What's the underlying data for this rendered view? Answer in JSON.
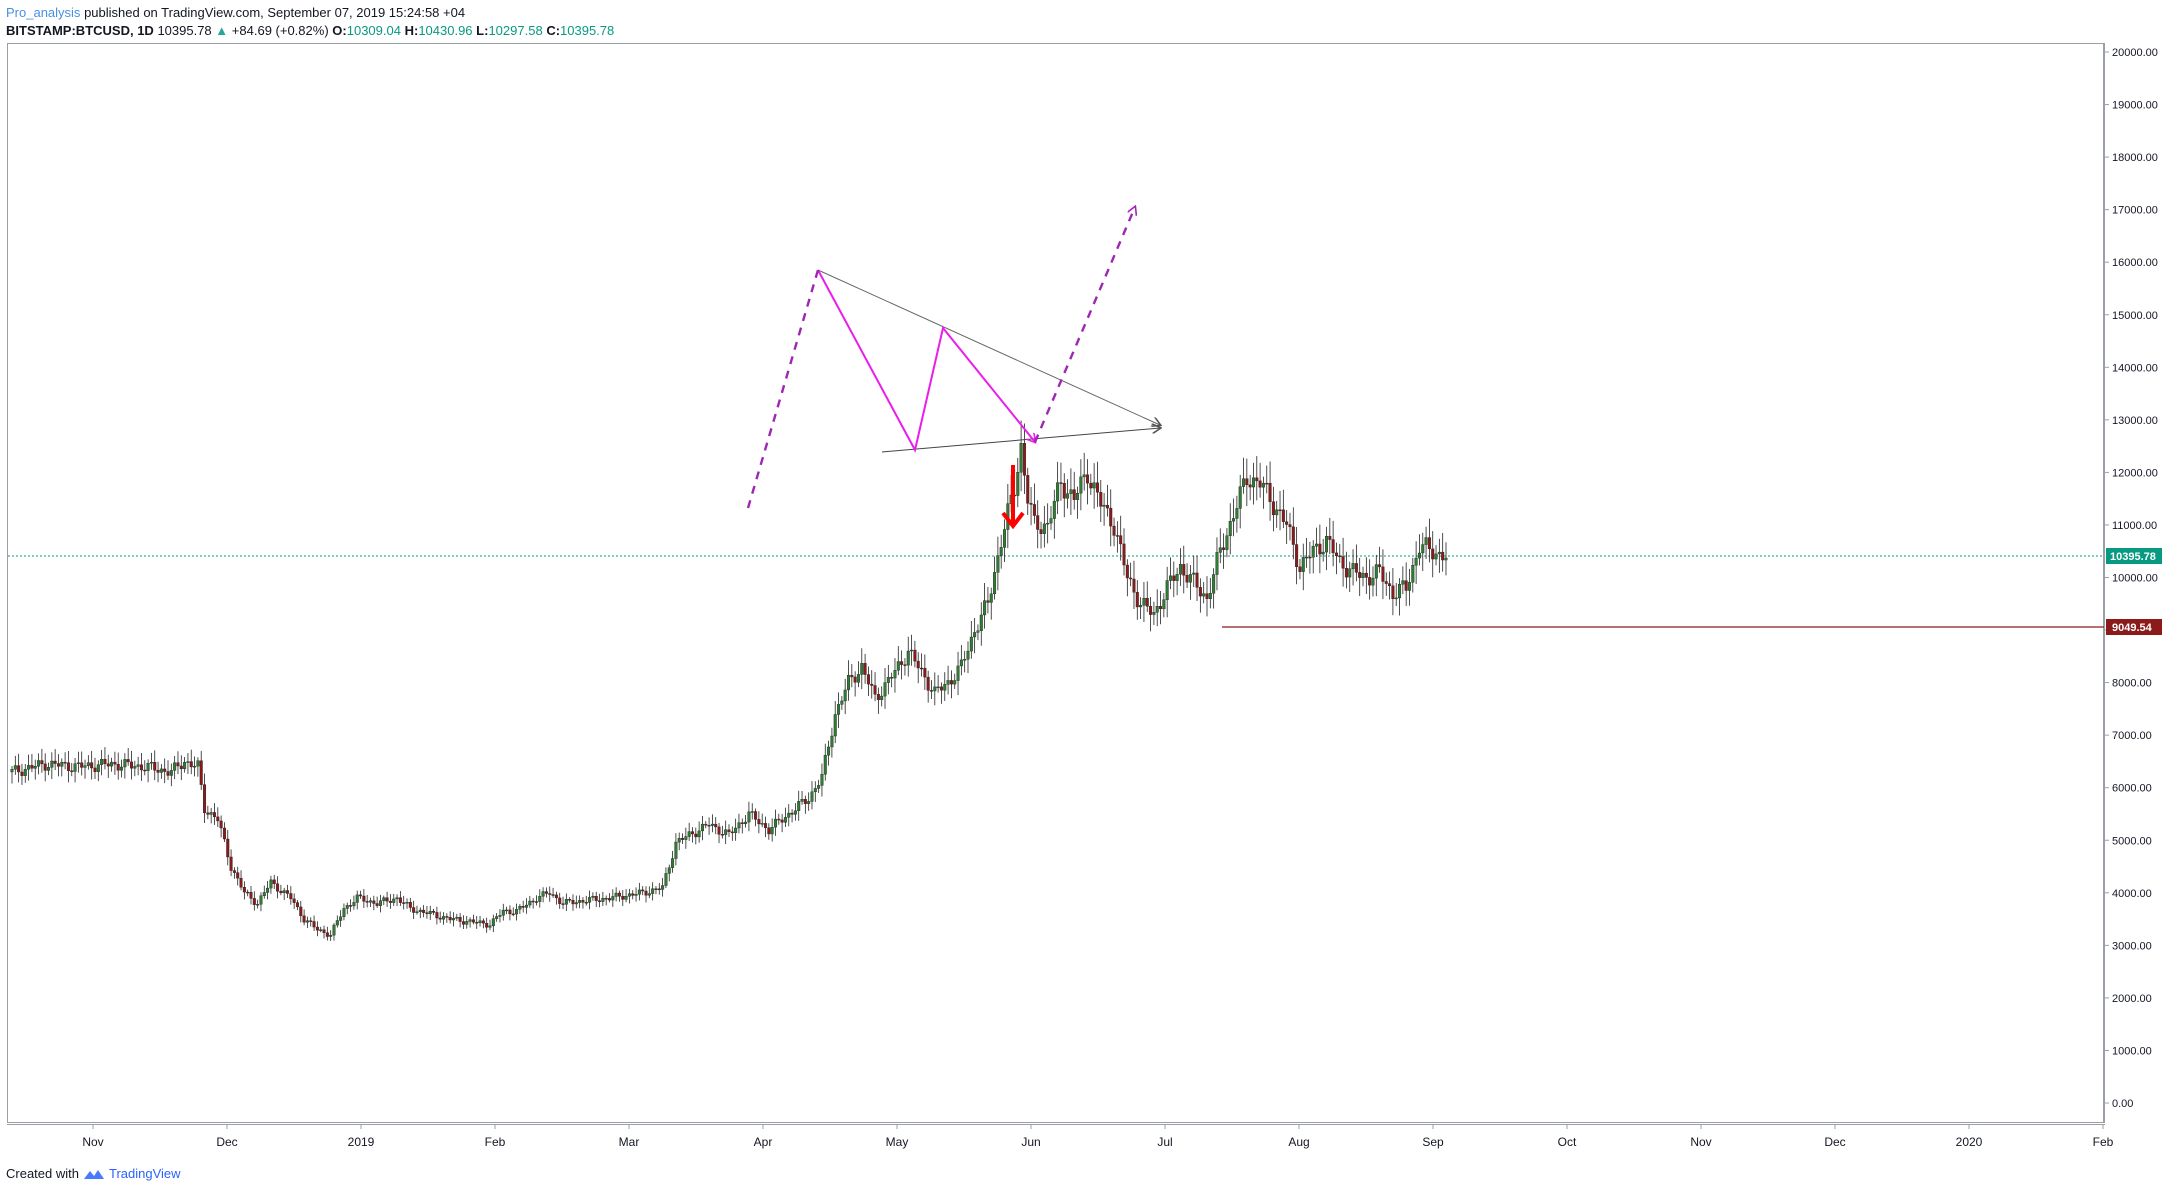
{
  "header": {
    "publisher": "Pro_analysis",
    "published_text": "published on TradingView.com, September 07, 2019 15:24:58 +04",
    "symbol": "BITSTAMP:BTCUSD, 1D",
    "last": "10395.78",
    "change": "+84.69 (+0.82%)",
    "open_label": "O:",
    "open": "10309.04",
    "high_label": "H:",
    "high": "10430.96",
    "low_label": "L:",
    "low": "10297.58",
    "close_label": "C:",
    "close": "10395.78"
  },
  "footer": {
    "created_with": "Created with",
    "brand": "TradingView"
  },
  "price_tags": {
    "current": "10395.78",
    "support": "9049.54"
  },
  "colors": {
    "up": "#26a69a",
    "down": "#ef5350",
    "candle_up": "#2e7d32",
    "candle_down": "#8b1a1a",
    "pattern": "#e91ee9",
    "projection": "#9c27b0",
    "support": "#8b1a1a",
    "current_line": "#089981",
    "arrow_down": "#ff0000"
  },
  "chart_data": {
    "type": "candlestick",
    "y_ticks": [
      "20000.00",
      "19000.00",
      "18000.00",
      "17000.00",
      "16000.00",
      "15000.00",
      "14000.00",
      "13000.00",
      "12000.00",
      "11000.00",
      "10000.00",
      "9000.00",
      "8000.00",
      "7000.00",
      "6000.00",
      "5000.00",
      "4000.00",
      "3000.00",
      "2000.00",
      "1000.00",
      "0.00"
    ],
    "x_ticks": [
      "Nov",
      "Dec",
      "2019",
      "Feb",
      "Mar",
      "Apr",
      "May",
      "Jun",
      "Jul",
      "Aug",
      "Sep",
      "Oct",
      "Nov",
      "Dec",
      "2020",
      "Feb"
    ],
    "ylim": [
      0,
      20000
    ],
    "current_price": 10395.78,
    "support_level": 9049.54,
    "price_path": [
      [
        0,
        6300
      ],
      [
        10,
        6450
      ],
      [
        20,
        6400
      ],
      [
        30,
        6450
      ],
      [
        40,
        6400
      ],
      [
        48,
        6300
      ],
      [
        52,
        6500
      ],
      [
        56,
        6400
      ],
      [
        58,
        5600
      ],
      [
        62,
        5400
      ],
      [
        66,
        4500
      ],
      [
        70,
        4000
      ],
      [
        74,
        3800
      ],
      [
        78,
        4200
      ],
      [
        84,
        3900
      ],
      [
        88,
        3500
      ],
      [
        92,
        3300
      ],
      [
        96,
        3200
      ],
      [
        100,
        3700
      ],
      [
        104,
        3900
      ],
      [
        110,
        3800
      ],
      [
        116,
        3900
      ],
      [
        120,
        3700
      ],
      [
        126,
        3600
      ],
      [
        132,
        3500
      ],
      [
        138,
        3450
      ],
      [
        144,
        3400
      ],
      [
        148,
        3650
      ],
      [
        152,
        3650
      ],
      [
        158,
        3900
      ],
      [
        162,
        4000
      ],
      [
        166,
        3800
      ],
      [
        172,
        3850
      ],
      [
        180,
        3900
      ],
      [
        190,
        4000
      ],
      [
        196,
        4100
      ],
      [
        200,
        4950
      ],
      [
        204,
        5100
      ],
      [
        210,
        5300
      ],
      [
        216,
        5100
      ],
      [
        222,
        5500
      ],
      [
        228,
        5200
      ],
      [
        234,
        5500
      ],
      [
        240,
        5800
      ],
      [
        244,
        6200
      ],
      [
        248,
        7400
      ],
      [
        252,
        8000
      ],
      [
        256,
        8300
      ],
      [
        260,
        7700
      ],
      [
        266,
        8200
      ],
      [
        270,
        8600
      ],
      [
        274,
        8200
      ],
      [
        278,
        7800
      ],
      [
        282,
        8000
      ],
      [
        286,
        8300
      ],
      [
        290,
        9000
      ],
      [
        294,
        9500
      ],
      [
        298,
        10700
      ],
      [
        302,
        11700
      ],
      [
        304,
        12500
      ],
      [
        306,
        11500
      ],
      [
        308,
        11000
      ],
      [
        312,
        11000
      ],
      [
        316,
        11800
      ],
      [
        320,
        11500
      ],
      [
        324,
        12000
      ],
      [
        328,
        11400
      ],
      [
        332,
        11000
      ],
      [
        336,
        10000
      ],
      [
        340,
        9500
      ],
      [
        344,
        9300
      ],
      [
        348,
        9800
      ],
      [
        352,
        10200
      ],
      [
        356,
        9900
      ],
      [
        360,
        9600
      ],
      [
        364,
        10500
      ],
      [
        368,
        11200
      ],
      [
        372,
        11900
      ],
      [
        376,
        11800
      ],
      [
        380,
        11400
      ],
      [
        384,
        11000
      ],
      [
        388,
        10200
      ],
      [
        392,
        10500
      ],
      [
        396,
        10700
      ],
      [
        400,
        10300
      ],
      [
        404,
        10100
      ],
      [
        408,
        10000
      ],
      [
        412,
        10100
      ],
      [
        416,
        9700
      ],
      [
        420,
        9800
      ],
      [
        424,
        10600
      ],
      [
        428,
        10500
      ],
      [
        432,
        10395
      ]
    ],
    "annotations": {
      "triangle_upper": [
        [
          818,
          270
        ],
        [
          1160,
          425
        ]
      ],
      "triangle_lower": [
        [
          882,
          452
        ],
        [
          1160,
          428
        ]
      ],
      "zigzag": [
        [
          818,
          270
        ],
        [
          915,
          450
        ],
        [
          943,
          328
        ],
        [
          1035,
          442
        ]
      ],
      "projection_left": [
        [
          748,
          508
        ],
        [
          818,
          270
        ]
      ],
      "projection_right": [
        [
          1035,
          442
        ],
        [
          1135,
          207
        ]
      ],
      "arrow_down": [
        [
          1013,
          465
        ],
        [
          1013,
          525
        ]
      ]
    }
  }
}
